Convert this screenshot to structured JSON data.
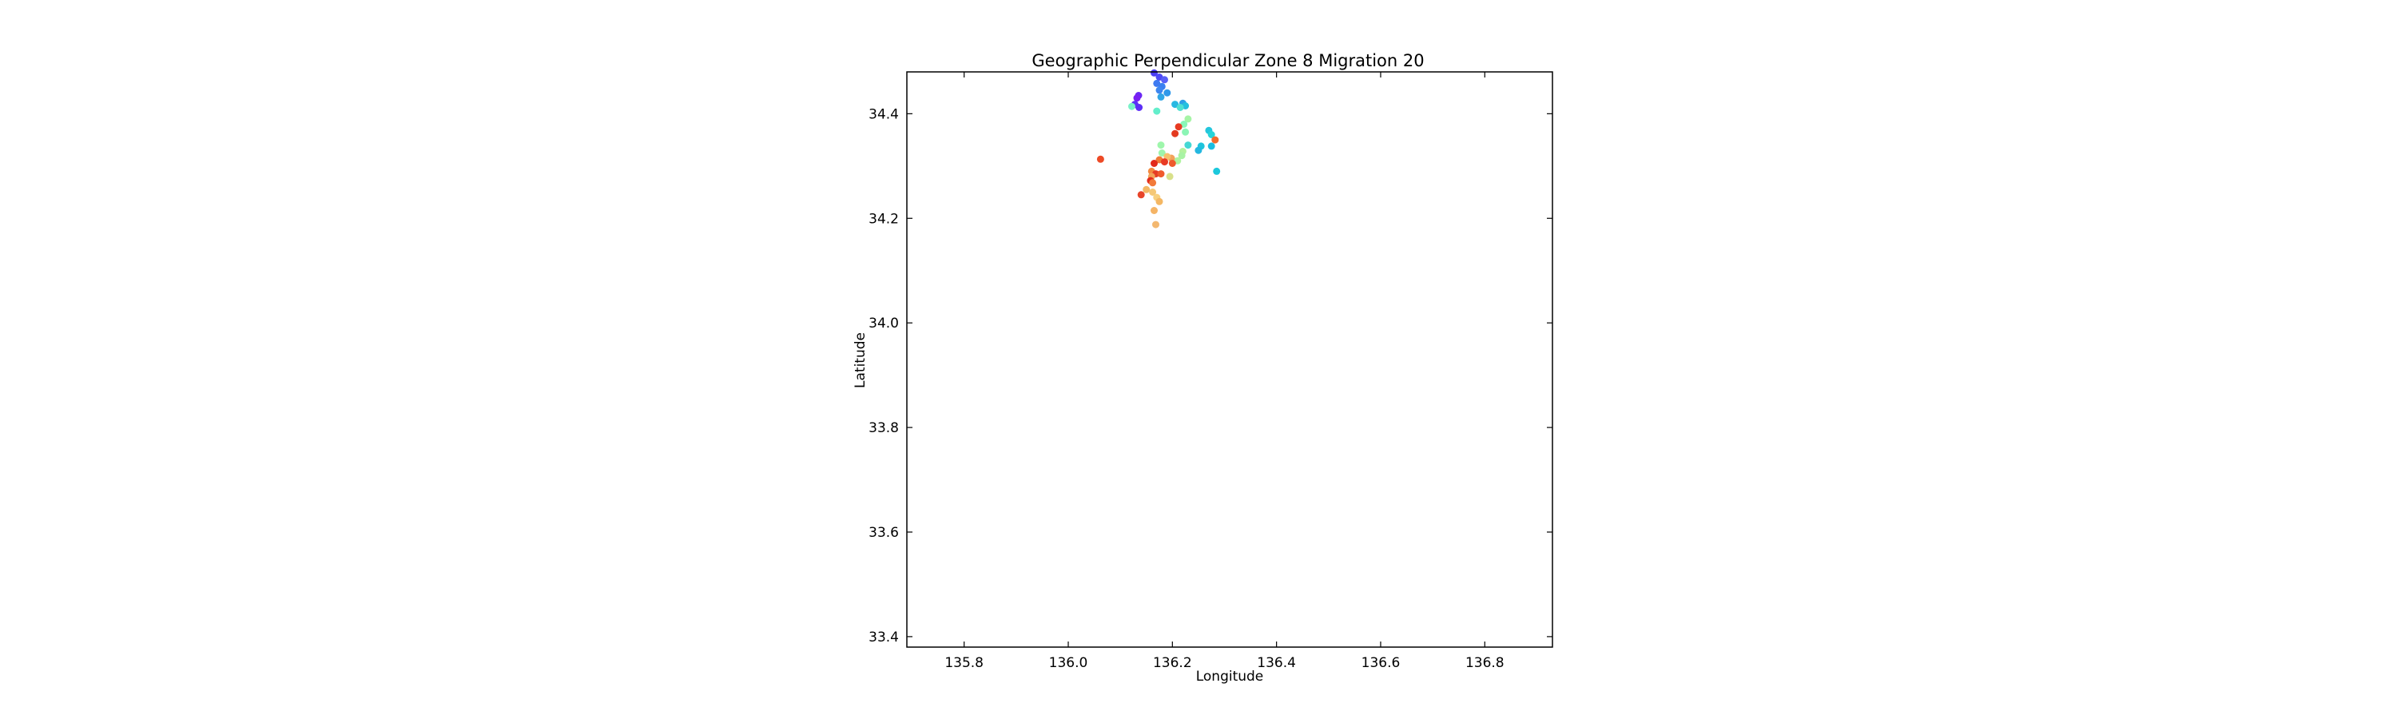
{
  "chart_data": {
    "type": "scatter",
    "title": "Geographic Perpendicular Zone 8 Migration 20",
    "xlabel": "Longitude",
    "ylabel": "Latitude",
    "xlim": [
      135.69,
      136.93
    ],
    "ylim": [
      33.38,
      34.48
    ],
    "xticks": [
      135.8,
      136.0,
      136.2,
      136.4,
      136.6,
      136.8
    ],
    "xtick_labels": [
      "135.8",
      "136.0",
      "136.2",
      "136.4",
      "136.6",
      "136.8"
    ],
    "yticks": [
      33.4,
      33.6,
      33.8,
      34.0,
      34.2,
      34.4
    ],
    "ytick_labels": [
      "33.4",
      "33.6",
      "33.8",
      "34.0",
      "34.2",
      "34.4"
    ],
    "grid": false,
    "colormap": "rainbow",
    "points": [
      {
        "x": 136.165,
        "y": 34.478,
        "color": "#4b3cf4"
      },
      {
        "x": 136.175,
        "y": 34.47,
        "color": "#4f49f5"
      },
      {
        "x": 136.185,
        "y": 34.465,
        "color": "#5a60f7"
      },
      {
        "x": 136.17,
        "y": 34.458,
        "color": "#3e7af1"
      },
      {
        "x": 136.18,
        "y": 34.452,
        "color": "#3a80f0"
      },
      {
        "x": 136.175,
        "y": 34.445,
        "color": "#3d86ef"
      },
      {
        "x": 136.19,
        "y": 34.44,
        "color": "#2f98ea"
      },
      {
        "x": 136.178,
        "y": 34.432,
        "color": "#30a6e6"
      },
      {
        "x": 136.135,
        "y": 34.435,
        "color": "#6a28f4"
      },
      {
        "x": 136.132,
        "y": 34.43,
        "color": "#7a1ff2"
      },
      {
        "x": 136.128,
        "y": 34.418,
        "color": "#5a32f5"
      },
      {
        "x": 136.136,
        "y": 34.412,
        "color": "#5d2ff6"
      },
      {
        "x": 136.122,
        "y": 34.414,
        "color": "#7af2c8"
      },
      {
        "x": 136.205,
        "y": 34.418,
        "color": "#28b8e2"
      },
      {
        "x": 136.22,
        "y": 34.42,
        "color": "#2d9fe8"
      },
      {
        "x": 136.225,
        "y": 34.415,
        "color": "#24c0de"
      },
      {
        "x": 136.215,
        "y": 34.412,
        "color": "#4fe0d2"
      },
      {
        "x": 136.17,
        "y": 34.405,
        "color": "#63eecb"
      },
      {
        "x": 136.23,
        "y": 34.39,
        "color": "#a6f4a6"
      },
      {
        "x": 136.222,
        "y": 34.38,
        "color": "#8af6b8"
      },
      {
        "x": 136.212,
        "y": 34.375,
        "color": "#e83a22"
      },
      {
        "x": 136.205,
        "y": 34.362,
        "color": "#e33a1f"
      },
      {
        "x": 136.225,
        "y": 34.365,
        "color": "#8bf5b5"
      },
      {
        "x": 136.27,
        "y": 34.368,
        "color": "#24c6dd"
      },
      {
        "x": 136.275,
        "y": 34.36,
        "color": "#26d4d8"
      },
      {
        "x": 136.282,
        "y": 34.35,
        "color": "#f36b2c"
      },
      {
        "x": 136.23,
        "y": 34.34,
        "color": "#45d8d4"
      },
      {
        "x": 136.255,
        "y": 34.338,
        "color": "#1ec4dc"
      },
      {
        "x": 136.25,
        "y": 34.33,
        "color": "#24b7e0"
      },
      {
        "x": 136.275,
        "y": 34.338,
        "color": "#1bbde0"
      },
      {
        "x": 136.178,
        "y": 34.34,
        "color": "#9ef6ab"
      },
      {
        "x": 136.22,
        "y": 34.328,
        "color": "#b4f29d"
      },
      {
        "x": 136.218,
        "y": 34.32,
        "color": "#a8f3a4"
      },
      {
        "x": 136.21,
        "y": 34.31,
        "color": "#b0f3a0"
      },
      {
        "x": 136.18,
        "y": 34.325,
        "color": "#9ef5ac"
      },
      {
        "x": 136.198,
        "y": 34.315,
        "color": "#f2a25a"
      },
      {
        "x": 136.19,
        "y": 34.318,
        "color": "#f6c06d"
      },
      {
        "x": 136.175,
        "y": 34.312,
        "color": "#f07a38"
      },
      {
        "x": 136.185,
        "y": 34.308,
        "color": "#e83a24"
      },
      {
        "x": 136.2,
        "y": 34.305,
        "color": "#ee5a2c"
      },
      {
        "x": 136.165,
        "y": 34.305,
        "color": "#e2291a"
      },
      {
        "x": 136.16,
        "y": 34.29,
        "color": "#f48a40"
      },
      {
        "x": 136.168,
        "y": 34.285,
        "color": "#e53d25"
      },
      {
        "x": 136.178,
        "y": 34.285,
        "color": "#f05a2c"
      },
      {
        "x": 136.16,
        "y": 34.28,
        "color": "#f2a45a"
      },
      {
        "x": 136.158,
        "y": 34.272,
        "color": "#e32c1c"
      },
      {
        "x": 136.162,
        "y": 34.268,
        "color": "#f27a3a"
      },
      {
        "x": 136.195,
        "y": 34.28,
        "color": "#d8e08a"
      },
      {
        "x": 136.15,
        "y": 34.255,
        "color": "#f3b865"
      },
      {
        "x": 136.162,
        "y": 34.25,
        "color": "#f5c876"
      },
      {
        "x": 136.14,
        "y": 34.245,
        "color": "#e8452a"
      },
      {
        "x": 136.17,
        "y": 34.24,
        "color": "#f7d07e"
      },
      {
        "x": 136.175,
        "y": 34.232,
        "color": "#f4b763"
      },
      {
        "x": 136.165,
        "y": 34.215,
        "color": "#f5b465"
      },
      {
        "x": 136.168,
        "y": 34.188,
        "color": "#f3b870"
      },
      {
        "x": 136.062,
        "y": 34.313,
        "color": "#ed4a26"
      },
      {
        "x": 136.285,
        "y": 34.29,
        "color": "#1cc8dc"
      }
    ]
  }
}
